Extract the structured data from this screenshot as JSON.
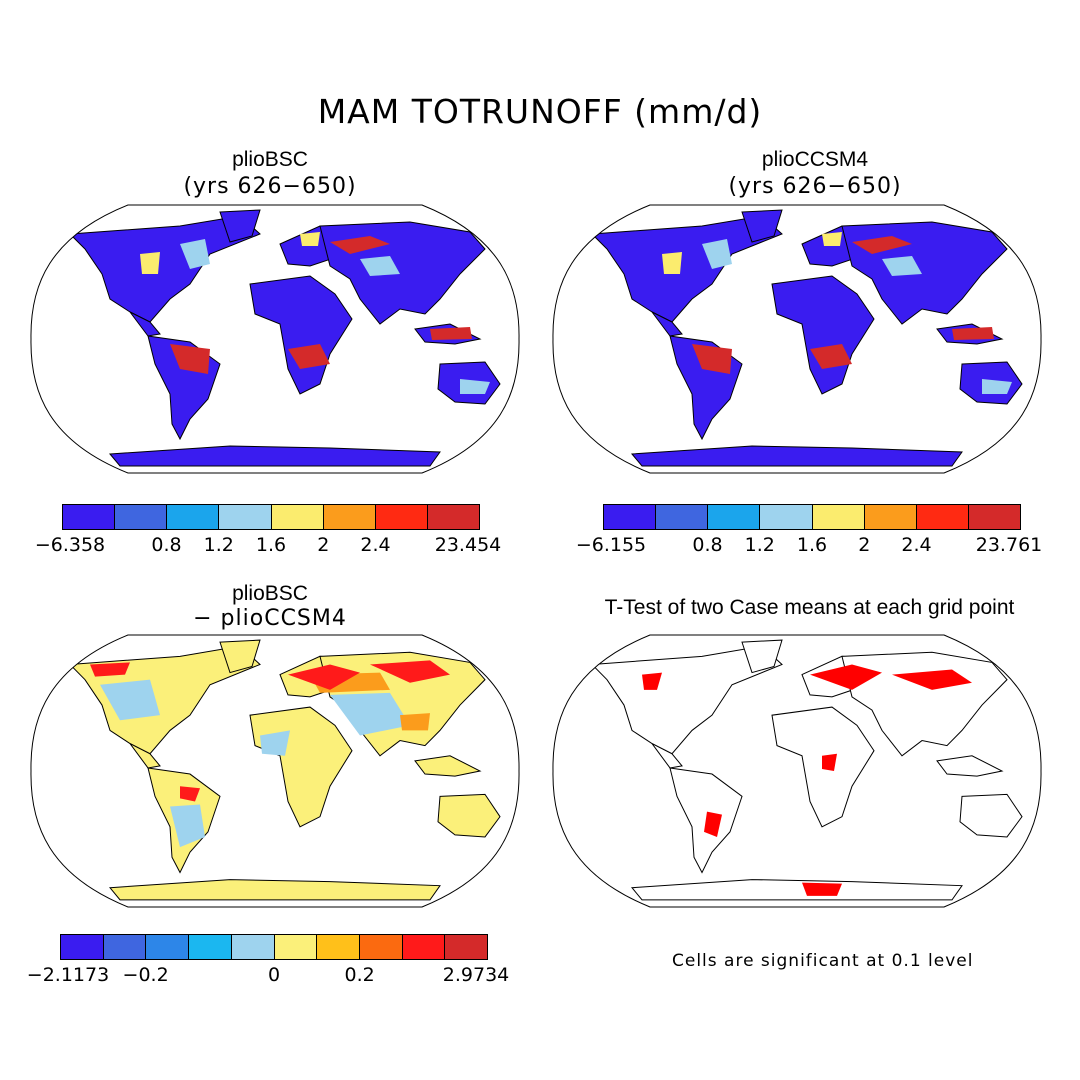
{
  "title": "MAM TOTRUNOFF (mm/d)",
  "panels": {
    "top_left": {
      "title": "plioBSC",
      "subtitle": "(yrs 626−650)"
    },
    "top_right": {
      "title": "plioCCSM4",
      "subtitle": "(yrs 626−650)"
    },
    "bottom_left": {
      "title": "plioBSC",
      "subtitle": "− plioCCSM4"
    },
    "bottom_right": {
      "title": "T-Test of two Case means at each grid point"
    }
  },
  "colorbars": {
    "top_left": {
      "colors": [
        "#3a1cf0",
        "#3f66e0",
        "#1ba5ec",
        "#9ed3ee",
        "#fbec6e",
        "#fb9c1c",
        "#ff2a12",
        "#d42a2a"
      ],
      "ticks": [
        "−6.358",
        "0.8",
        "1.2",
        "1.6",
        "2",
        "2.4",
        "23.454"
      ]
    },
    "top_right": {
      "colors": [
        "#3a1cf0",
        "#3f66e0",
        "#1ba5ec",
        "#9ed3ee",
        "#fbec6e",
        "#fb9c1c",
        "#ff2a12",
        "#d42a2a"
      ],
      "ticks": [
        "−6.155",
        "0.8",
        "1.2",
        "1.6",
        "2",
        "2.4",
        "23.761"
      ]
    },
    "bottom_left": {
      "colors": [
        "#3a1cf0",
        "#3f66e0",
        "#2d86e8",
        "#1bb7f0",
        "#9ed3ee",
        "#fbf07a",
        "#ffc01a",
        "#fb6a10",
        "#ff1a1a",
        "#d42a2a"
      ],
      "ticks": [
        "−2.1173",
        "−0.2",
        "0",
        "0.2",
        "2.9734"
      ]
    }
  },
  "footnote": "Cells are significant at 0.1 level",
  "map_fills": {
    "top_left": {
      "land": "#3a1cf0",
      "highlight": "#d42a2a",
      "mid": "#9ed3ee",
      "warm": "#fbec6e",
      "ocean": "#ffffff",
      "outline": "#000000"
    },
    "top_right": {
      "land": "#3a1cf0",
      "highlight": "#d42a2a",
      "mid": "#9ed3ee",
      "warm": "#fbec6e",
      "ocean": "#ffffff",
      "outline": "#000000"
    },
    "bottom_left": {
      "land": "#fbf07a",
      "highlight": "#ff1a1a",
      "mid": "#9ed3ee",
      "warm": "#fb9c1c",
      "ocean": "#ffffff",
      "outline": "#000000"
    },
    "bottom_right": {
      "land": "#ffffff",
      "highlight": "#ff0000",
      "mid": "#ffffff",
      "warm": "#ff0000",
      "ocean": "#ffffff",
      "outline": "#000000"
    }
  }
}
